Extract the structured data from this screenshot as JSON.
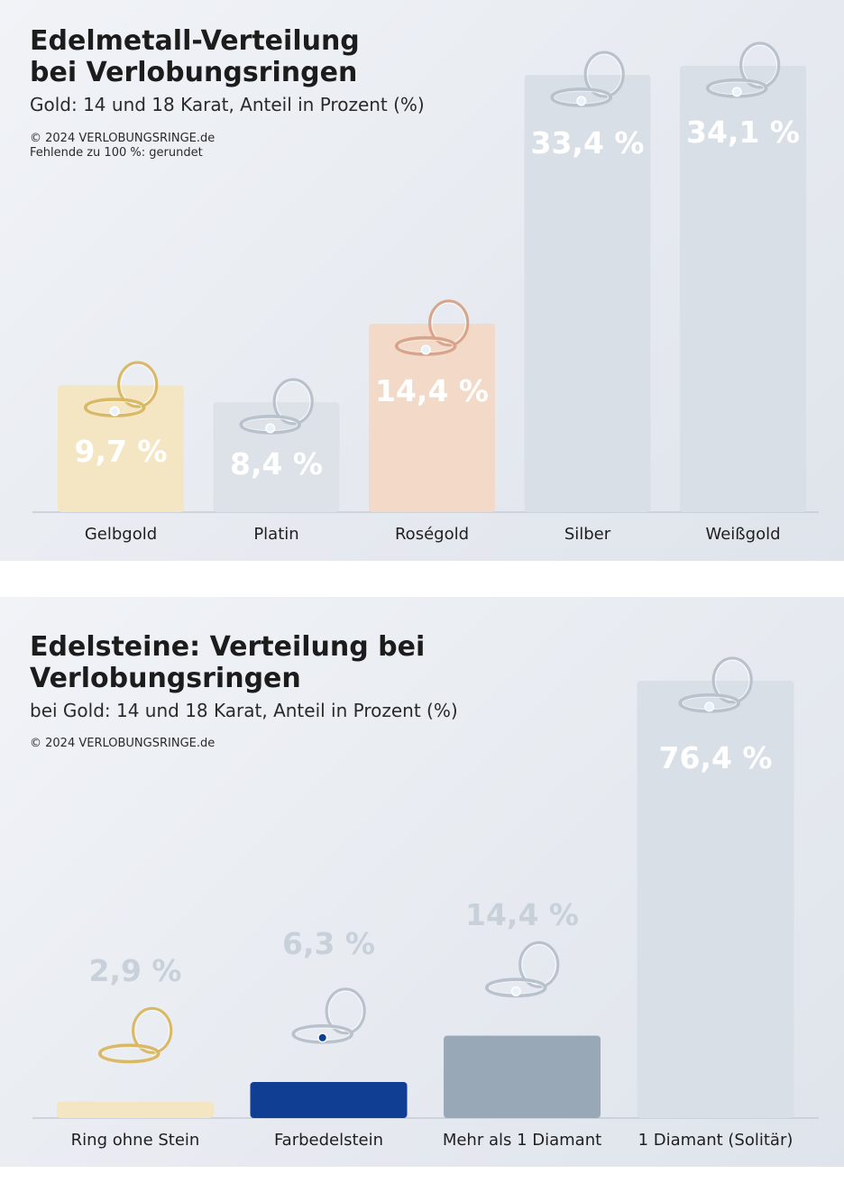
{
  "charts": [
    {
      "title_line1": "Edelmetall-Verteilung",
      "title_line2": "bei Verlobungsringen",
      "subtitle": "Gold: 14 und 18 Karat, Anteil in Prozent (%)",
      "notes": [
        "© 2024 VERLOBUNGSRINGE.de",
        "Fehlende zu 100 %: gerundet"
      ]
    },
    {
      "title_line1": "Edelsteine: Verteilung bei",
      "title_line2": "Verlobungsringen",
      "subtitle": "bei Gold: 14 und 18 Karat, Anteil in Prozent (%)",
      "notes": [
        "© 2024 VERLOBUNGSRINGE.de"
      ]
    }
  ],
  "chart_data": [
    {
      "type": "bar",
      "title": "Edelmetall-Verteilung bei Verlobungsringen",
      "subtitle": "Gold: 14 und 18 Karat, Anteil in Prozent (%)",
      "categories": [
        "Gelbgold",
        "Platin",
        "Roségold",
        "Silber",
        "Weißgold"
      ],
      "values": [
        9.7,
        8.4,
        14.4,
        33.4,
        34.1
      ],
      "labels": [
        "9,7 %",
        "8,4 %",
        "14,4 %",
        "33,4 %",
        "34,1 %"
      ],
      "colors": [
        "#f5e6c3",
        "#dde2e8",
        "#f3d9c8",
        "#d8dfe6",
        "#d8dfe6"
      ],
      "label_color": "#ffffff",
      "grid": false,
      "legend": "none"
    },
    {
      "type": "bar",
      "title": "Edelsteine: Verteilung bei Verlobungsringen",
      "subtitle": "bei Gold: 14 und 18 Karat, Anteil in Prozent (%)",
      "categories": [
        "Ring ohne Stein",
        "Farbedelstein",
        "Mehr als 1 Diamant",
        "1 Diamant (Solitär)"
      ],
      "values": [
        2.9,
        6.3,
        14.4,
        76.4
      ],
      "labels": [
        "2,9 %",
        "6,3 %",
        "14,4 %",
        "76,4 %"
      ],
      "colors": [
        "#f5e6c3",
        "#0f3e93",
        "#98a8b6",
        "#d8dfe6"
      ],
      "label_colors": [
        "#c8d1da",
        "#c8d1da",
        "#c8d1da",
        "#ffffff"
      ],
      "grid": false,
      "legend": "none"
    }
  ]
}
